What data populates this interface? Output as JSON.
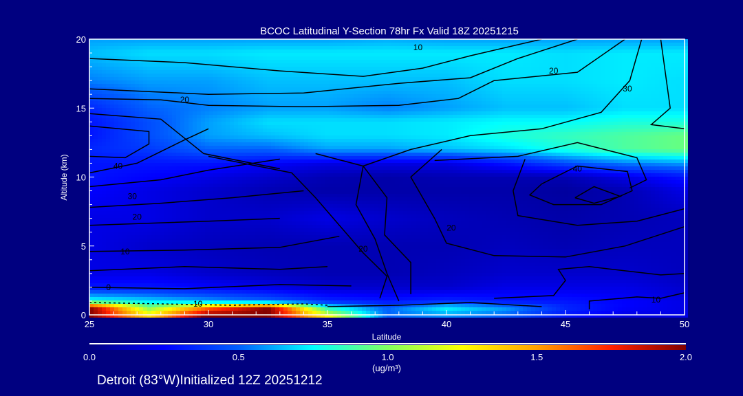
{
  "chart_data": {
    "type": "heatmap",
    "title": "BCOC Latitudinal Y-Section 78hr  Fx Valid 18Z 20251215",
    "xlabel": "Latitude",
    "ylabel": "Altitude (km)",
    "xlim": [
      25,
      50
    ],
    "ylim": [
      0,
      20
    ],
    "xticks": [
      "25",
      "30",
      "35",
      "40",
      "45",
      "50"
    ],
    "xtick_values": [
      25,
      30,
      35,
      40,
      45,
      50
    ],
    "yticks": [
      "0",
      "5",
      "10",
      "15",
      "20"
    ],
    "ytick_values": [
      0,
      5,
      10,
      15,
      20
    ],
    "colorbar": {
      "range": [
        0,
        2
      ],
      "ticks": [
        "0.0",
        "0.5",
        "1.0",
        "1.5",
        "2.0"
      ],
      "tick_values": [
        0,
        0.5,
        1.0,
        1.5,
        2.0
      ],
      "units": "(ug/m³)",
      "colors": [
        "#000080",
        "#0000ff",
        "#0060ff",
        "#00ffff",
        "#80ff60",
        "#ffff00",
        "#ffa000",
        "#ff2000",
        "#800000"
      ]
    },
    "grid_lat": [
      25,
      27.5,
      30,
      32.5,
      35,
      37.5,
      40,
      42.5,
      45,
      47.5,
      50
    ],
    "grid_alt": [
      0,
      0.5,
      1,
      2,
      3,
      5,
      7,
      9,
      10,
      11,
      12,
      13,
      14,
      15,
      17,
      19,
      20
    ],
    "concentration": [
      [
        2.0,
        1.3,
        2.0,
        2.0,
        1.2,
        0.5,
        0.6,
        0.5,
        0.3,
        0.2,
        0.2
      ],
      [
        2.0,
        1.0,
        1.6,
        2.0,
        0.8,
        0.5,
        0.75,
        0.6,
        0.35,
        0.25,
        0.2
      ],
      [
        0.8,
        0.7,
        0.6,
        0.5,
        0.35,
        0.3,
        0.35,
        0.3,
        0.3,
        0.25,
        0.2
      ],
      [
        0.3,
        0.3,
        0.25,
        0.2,
        0.15,
        0.15,
        0.15,
        0.2,
        0.2,
        0.2,
        0.15
      ],
      [
        0.2,
        0.2,
        0.15,
        0.12,
        0.1,
        0.1,
        0.12,
        0.15,
        0.15,
        0.15,
        0.12
      ],
      [
        0.2,
        0.15,
        0.12,
        0.1,
        0.1,
        0.1,
        0.1,
        0.12,
        0.1,
        0.12,
        0.12
      ],
      [
        0.2,
        0.2,
        0.15,
        0.15,
        0.2,
        0.15,
        0.12,
        0.1,
        0.08,
        0.1,
        0.12
      ],
      [
        0.25,
        0.2,
        0.15,
        0.1,
        0.08,
        0.08,
        0.08,
        0.08,
        0.06,
        0.1,
        0.2
      ],
      [
        0.3,
        0.25,
        0.2,
        0.15,
        0.1,
        0.08,
        0.1,
        0.1,
        0.1,
        0.2,
        0.3
      ],
      [
        0.3,
        0.3,
        0.3,
        0.25,
        0.2,
        0.2,
        0.2,
        0.3,
        0.45,
        0.55,
        0.6
      ],
      [
        0.35,
        0.4,
        0.5,
        0.5,
        0.6,
        0.6,
        0.65,
        0.7,
        0.8,
        0.9,
        0.95
      ],
      [
        0.3,
        0.45,
        0.6,
        0.65,
        0.7,
        0.7,
        0.72,
        0.8,
        0.85,
        0.9,
        0.95
      ],
      [
        0.3,
        0.45,
        0.6,
        0.7,
        0.7,
        0.7,
        0.72,
        0.75,
        0.75,
        0.8,
        0.8
      ],
      [
        0.35,
        0.5,
        0.55,
        0.6,
        0.6,
        0.55,
        0.6,
        0.65,
        0.65,
        0.7,
        0.7
      ],
      [
        0.55,
        0.6,
        0.6,
        0.65,
        0.65,
        0.65,
        0.65,
        0.7,
        0.7,
        0.72,
        0.7
      ],
      [
        0.65,
        0.7,
        0.7,
        0.72,
        0.72,
        0.72,
        0.72,
        0.72,
        0.7,
        0.72,
        0.72
      ],
      [
        0.6,
        0.6,
        0.6,
        0.6,
        0.6,
        0.62,
        0.6,
        0.6,
        0.6,
        0.6,
        0.6
      ]
    ],
    "contours": [
      {
        "label": "10",
        "label_at": [
          38.8,
          19.4
        ],
        "points": [
          [
            25,
            18.6
          ],
          [
            29,
            18.3
          ],
          [
            33,
            17.7
          ],
          [
            36.5,
            17.3
          ],
          [
            39,
            17.9
          ],
          [
            41,
            18.8
          ],
          [
            44,
            20
          ]
        ]
      },
      {
        "label": "",
        "points": [
          [
            25,
            16.4
          ],
          [
            30,
            16.0
          ],
          [
            34,
            16.1
          ],
          [
            38,
            16.8
          ],
          [
            41,
            17.2
          ],
          [
            43,
            18.6
          ],
          [
            45.5,
            20
          ]
        ]
      },
      {
        "label": "20",
        "label_at": [
          44.5,
          17.7
        ],
        "points": [
          [
            25,
            15.7
          ],
          [
            28,
            15.6
          ],
          [
            30,
            15.2
          ],
          [
            34,
            15.1
          ],
          [
            38,
            15.2
          ],
          [
            40.5,
            15.7
          ],
          [
            42,
            17
          ],
          [
            45.5,
            17.6
          ],
          [
            47.5,
            20
          ]
        ]
      },
      {
        "label": "20",
        "label_at": [
          29,
          15.6
        ],
        "points": [
          [
            25,
            14.6
          ],
          [
            28,
            14.2
          ],
          [
            29.8,
            11.7
          ],
          [
            33,
            10.6
          ]
        ]
      },
      {
        "label": "30",
        "label_at": [
          47.6,
          16.4
        ],
        "points": [
          [
            48.2,
            20
          ],
          [
            47.7,
            17
          ],
          [
            46.5,
            14.7
          ],
          [
            44,
            13.5
          ],
          [
            41,
            13
          ],
          [
            38.5,
            12
          ],
          [
            36.5,
            10.8
          ],
          [
            36.2,
            8
          ],
          [
            37,
            5.5
          ],
          [
            37.5,
            3
          ],
          [
            38,
            1
          ]
        ]
      },
      {
        "label": "",
        "points": [
          [
            49,
            20
          ],
          [
            49.4,
            15
          ],
          [
            48.6,
            13.8
          ],
          [
            50,
            13.5
          ]
        ]
      },
      {
        "label": "",
        "points": [
          [
            25,
            13.7
          ],
          [
            27.5,
            13.3
          ],
          [
            27.5,
            12.4
          ],
          [
            26.5,
            11.4
          ],
          [
            25,
            11.5
          ]
        ]
      },
      {
        "label": "40",
        "label_at": [
          45.5,
          10.6
        ],
        "points": [
          [
            44,
            9.5
          ],
          [
            45.5,
            10.8
          ],
          [
            47.6,
            10.4
          ],
          [
            47.8,
            9
          ],
          [
            46.5,
            8
          ],
          [
            44.5,
            8
          ],
          [
            43.5,
            8.7
          ],
          [
            44,
            9.5
          ]
        ]
      },
      {
        "label": "",
        "points": [
          [
            45.4,
            8.5
          ],
          [
            46.2,
            9.3
          ],
          [
            47.3,
            8.6
          ],
          [
            46.2,
            8.1
          ],
          [
            45.4,
            8.5
          ]
        ]
      },
      {
        "label": "",
        "points": [
          [
            39.5,
            11.2
          ],
          [
            43,
            11.5
          ],
          [
            45.5,
            12.5
          ],
          [
            48,
            11.4
          ],
          [
            48.4,
            9.8
          ],
          [
            47.7,
            9.2
          ]
        ]
      },
      {
        "label": "",
        "points": [
          [
            43.3,
            11.3
          ],
          [
            42.8,
            9
          ],
          [
            43,
            7.2
          ],
          [
            45.5,
            6.5
          ],
          [
            48,
            6.8
          ],
          [
            50,
            7.7
          ]
        ]
      },
      {
        "label": "20",
        "label_at": [
          40.2,
          6.3
        ],
        "points": [
          [
            39.8,
            12
          ],
          [
            38.5,
            10
          ],
          [
            39.5,
            7
          ],
          [
            40,
            5.2
          ],
          [
            42,
            4.3
          ],
          [
            45,
            4.2
          ],
          [
            47.5,
            5
          ],
          [
            50,
            6.4
          ]
        ]
      },
      {
        "label": "20",
        "label_at": [
          36.5,
          4.8
        ],
        "points": [
          [
            34.5,
            11.7
          ],
          [
            36.5,
            10.8
          ],
          [
            37.5,
            8.5
          ],
          [
            37.4,
            5.8
          ],
          [
            38.5,
            3.8
          ],
          [
            38.5,
            1.5
          ]
        ]
      },
      {
        "label": "",
        "points": [
          [
            30,
            11.5
          ],
          [
            33.5,
            10.3
          ],
          [
            34.5,
            8.5
          ],
          [
            35.5,
            6.5
          ],
          [
            36.5,
            4.5
          ],
          [
            37.5,
            2.8
          ],
          [
            37.2,
            1.2
          ]
        ]
      },
      {
        "label": "40",
        "label_at": [
          26.2,
          10.8
        ],
        "points": [
          [
            25,
            10.3
          ],
          [
            27,
            11
          ],
          [
            29,
            12.7
          ],
          [
            30,
            13.5
          ]
        ]
      },
      {
        "label": "30",
        "label_at": [
          26.8,
          8.6
        ],
        "points": [
          [
            25,
            9.3
          ],
          [
            28,
            9.8
          ],
          [
            30,
            10.5
          ],
          [
            33,
            11.3
          ]
        ]
      },
      {
        "label": "20",
        "label_at": [
          27,
          7.1
        ],
        "points": [
          [
            25,
            7.8
          ],
          [
            28,
            8.1
          ],
          [
            31,
            8.5
          ],
          [
            34,
            9
          ]
        ]
      },
      {
        "label": "",
        "points": [
          [
            25,
            6.5
          ],
          [
            30,
            6.8
          ],
          [
            33,
            7
          ]
        ]
      },
      {
        "label": "10",
        "label_at": [
          26.5,
          4.6
        ],
        "points": [
          [
            25,
            4.6
          ],
          [
            29,
            4.7
          ],
          [
            33,
            4.9
          ],
          [
            35.5,
            5.7
          ]
        ]
      },
      {
        "label": "",
        "points": [
          [
            25,
            3.2
          ],
          [
            29,
            3.5
          ],
          [
            33,
            3.3
          ],
          [
            35,
            3.5
          ]
        ]
      },
      {
        "label": "0",
        "label_at": [
          25.8,
          2.0
        ],
        "points": [
          [
            25,
            2
          ],
          [
            29,
            1.9
          ],
          [
            33,
            2.2
          ],
          [
            36,
            2.1
          ]
        ]
      },
      {
        "label": "-10",
        "label_at": [
          29.5,
          0.8
        ],
        "dashed": true,
        "points": [
          [
            25,
            0.9
          ],
          [
            28,
            0.8
          ],
          [
            31,
            0.7
          ],
          [
            34,
            0.8
          ],
          [
            35,
            0.7
          ]
        ]
      },
      {
        "label": "",
        "points": [
          [
            42,
            1.2
          ],
          [
            44.5,
            1.4
          ],
          [
            45,
            2.5
          ],
          [
            44.7,
            3.3
          ],
          [
            46,
            3.5
          ],
          [
            49,
            2.9
          ],
          [
            50,
            3
          ]
        ]
      },
      {
        "label": "10",
        "label_at": [
          48.8,
          1.1
        ],
        "points": [
          [
            46,
            0.4
          ],
          [
            46,
            1.0
          ],
          [
            48,
            1.3
          ],
          [
            49,
            1.2
          ],
          [
            50,
            1.6
          ]
        ]
      },
      {
        "label": "",
        "points": [
          [
            35,
            0.6
          ],
          [
            38,
            0.7
          ],
          [
            41,
            0.9
          ],
          [
            44,
            0.6
          ]
        ]
      }
    ]
  },
  "footer": "Detroit (83°W)Initialized 12Z 20251212"
}
